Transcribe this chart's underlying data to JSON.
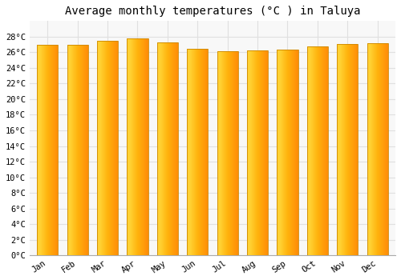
{
  "title": "Average monthly temperatures (°C ) in Taluya",
  "months": [
    "Jan",
    "Feb",
    "Mar",
    "Apr",
    "May",
    "Jun",
    "Jul",
    "Aug",
    "Sep",
    "Oct",
    "Nov",
    "Dec"
  ],
  "values": [
    27.0,
    27.0,
    27.5,
    27.8,
    27.3,
    26.4,
    26.1,
    26.2,
    26.3,
    26.8,
    27.1,
    27.2
  ],
  "ylim": [
    0,
    30
  ],
  "yticks": [
    0,
    2,
    4,
    6,
    8,
    10,
    12,
    14,
    16,
    18,
    20,
    22,
    24,
    26,
    28
  ],
  "bar_color_left": "#FFB300",
  "bar_color_center": "#FFCA28",
  "bar_color_right": "#FF8C00",
  "bar_edge_color": "#CC8800",
  "bg_color": "#FFFFFF",
  "plot_bg_color": "#F8F8F8",
  "grid_color": "#E0E0E0",
  "title_fontsize": 10,
  "tick_fontsize": 7.5,
  "bar_width": 0.7
}
